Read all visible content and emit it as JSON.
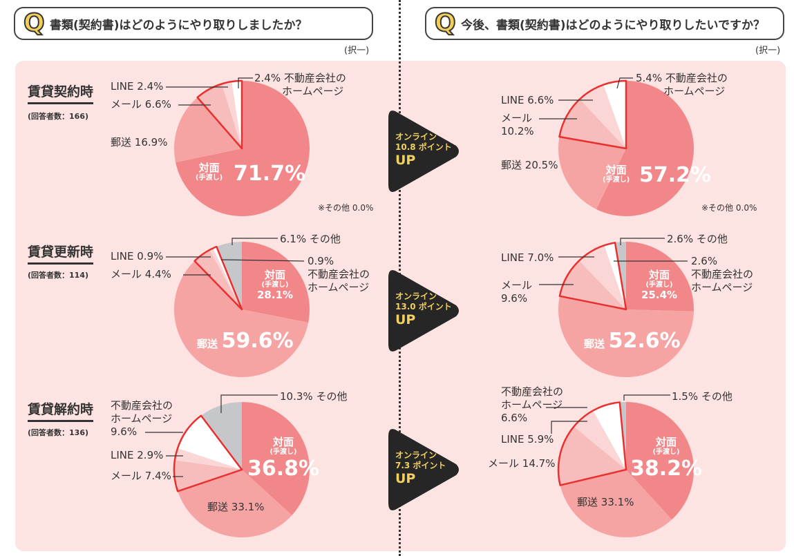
{
  "questions": [
    {
      "q": "書類(契約書)はどのようにやり取りしましたか？",
      "select": "(択一)"
    },
    {
      "q": "今後、書類(契約書)はどのようにやり取りしたいですか？",
      "select": "(択一)"
    }
  ],
  "q_icon": "Q",
  "rows": [
    {
      "title": "賃貸契約時",
      "respondents": "(回答者数：166)",
      "arrow": {
        "line1": "オンライン",
        "line2": "10.8 ポイント",
        "up": "UP"
      }
    },
    {
      "title": "賃貸更新時",
      "respondents": "(回答者数：114)",
      "arrow": {
        "line1": "オンライン",
        "line2": "13.0 ポイント",
        "up": "UP"
      }
    },
    {
      "title": "賃貸解約時",
      "respondents": "(回答者数：136)",
      "arrow": {
        "line1": "オンライン",
        "line2": "7.3 ポイント",
        "up": "UP"
      }
    }
  ],
  "other_note": "※その他 0.0%",
  "unit": "%",
  "categories": [
    {
      "name": "対面",
      "note": "(手渡し)"
    },
    {
      "name": "郵送"
    },
    {
      "name": "メール"
    },
    {
      "name": "LINE"
    },
    {
      "name": "不動産会社の",
      "name2": "ホームページ"
    },
    {
      "name": "その他"
    }
  ],
  "colors": [
    "#f2878a",
    "#f5a3a3",
    "#f7bcbc",
    "#fad6d6",
    "#ffffff",
    "#c6c7cb"
  ],
  "online_outline_color": "#e8302e",
  "chart_data": [
    {
      "type": "pie",
      "title": "賃貸契約時 (実績)",
      "values": [
        71.7,
        16.9,
        6.6,
        2.4,
        2.4,
        0.0
      ]
    },
    {
      "type": "pie",
      "title": "賃貸契約時 (今後)",
      "values": [
        57.2,
        20.5,
        10.2,
        6.6,
        5.4,
        0.0
      ]
    },
    {
      "type": "pie",
      "title": "賃貸更新時 (実績)",
      "values": [
        28.1,
        59.6,
        4.4,
        0.9,
        0.9,
        6.1
      ]
    },
    {
      "type": "pie",
      "title": "賃貸更新時 (今後)",
      "values": [
        25.4,
        52.6,
        9.6,
        7.0,
        2.6,
        2.6
      ]
    },
    {
      "type": "pie",
      "title": "賃貸解約時 (実績)",
      "values": [
        36.8,
        33.1,
        7.4,
        2.9,
        9.6,
        10.3
      ]
    },
    {
      "type": "pie",
      "title": "賃貸解約時 (今後)",
      "values": [
        38.2,
        33.1,
        14.7,
        5.9,
        6.6,
        1.5
      ]
    }
  ]
}
